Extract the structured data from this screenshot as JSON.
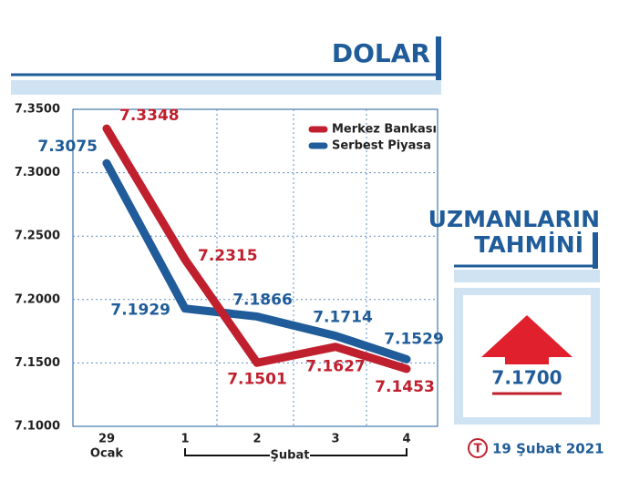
{
  "chart_data": {
    "type": "line",
    "title": "DOLAR",
    "categories": [
      "29",
      "1",
      "2",
      "3",
      "4"
    ],
    "x_groups": [
      {
        "label": "Ocak"
      },
      {
        "label": "Şubat"
      }
    ],
    "series": [
      {
        "name": "Merkez Bankası",
        "color": "#c0202e",
        "values": [
          7.3348,
          7.2315,
          7.1501,
          7.1627,
          7.1453
        ]
      },
      {
        "name": "Serbest Piyasa",
        "color": "#1f5c99",
        "values": [
          7.3075,
          7.1929,
          7.1866,
          7.1714,
          7.1529
        ]
      }
    ],
    "ylim": [
      7.1,
      7.35
    ],
    "yticks": [
      {
        "value": 7.1,
        "label": "7.1000"
      },
      {
        "value": 7.15,
        "label": "7.1500"
      },
      {
        "value": 7.2,
        "label": "7.2000"
      },
      {
        "value": 7.25,
        "label": "7.2500"
      },
      {
        "value": 7.3,
        "label": "7.3000"
      },
      {
        "value": 7.35,
        "label": "7.3500"
      }
    ],
    "grid": true,
    "forecast": {
      "title_line1": "UZMANLARIN",
      "title_line2": "TAHMİNİ",
      "value": 7.17,
      "value_label": "7.1700",
      "date": "19 Şubat 2021",
      "logo": "T"
    }
  }
}
